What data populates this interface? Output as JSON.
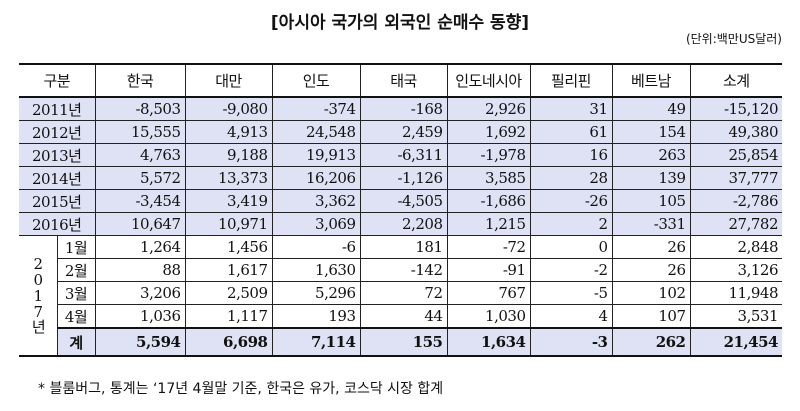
{
  "title": "[아시아 국가의 외국인 순매수 동향]",
  "unit": "(단위:백만US달러)",
  "headers": [
    "구분",
    "한국",
    "대만",
    "인도",
    "태국",
    "인도네시아",
    "필리핀",
    "베트남",
    "소계"
  ],
  "year_rows": [
    {
      "label": "2011년",
      "values": [
        "-8,503",
        "-9,080",
        "-374",
        "-168",
        "2,926",
        "31",
        "49",
        "-15,120"
      ]
    },
    {
      "label": "2012년",
      "values": [
        "15,555",
        "4,913",
        "24,548",
        "2,459",
        "1,692",
        "61",
        "154",
        "49,380"
      ]
    },
    {
      "label": "2013년",
      "values": [
        "4,763",
        "9,188",
        "19,913",
        "-6,311",
        "-1,978",
        "16",
        "263",
        "25,854"
      ]
    },
    {
      "label": "2014년",
      "values": [
        "5,572",
        "13,373",
        "16,206",
        "-1,126",
        "3,585",
        "28",
        "139",
        "37,777"
      ]
    },
    {
      "label": "2015년",
      "values": [
        "-3,454",
        "3,419",
        "3,362",
        "-4,505",
        "-1,686",
        "-26",
        "105",
        "-2,786"
      ]
    },
    {
      "label": "2016년",
      "values": [
        "10,647",
        "10,971",
        "3,069",
        "2,208",
        "1,215",
        "2",
        "-331",
        "27,782"
      ]
    }
  ],
  "year_2017_label": "2017년",
  "month_rows": [
    {
      "label": "1월",
      "values": [
        "1,264",
        "1,456",
        "-6",
        "181",
        "-72",
        "0",
        "26",
        "2,848"
      ]
    },
    {
      "label": "2월",
      "values": [
        "88",
        "1,617",
        "1,630",
        "-142",
        "-91",
        "-2",
        "26",
        "3,126"
      ]
    },
    {
      "label": "3월",
      "values": [
        "3,206",
        "2,509",
        "5,296",
        "72",
        "767",
        "-5",
        "102",
        "11,948"
      ]
    },
    {
      "label": "4월",
      "values": [
        "1,036",
        "1,117",
        "193",
        "44",
        "1,030",
        "4",
        "107",
        "3,531"
      ]
    }
  ],
  "total_row": {
    "label": "계",
    "values": [
      "5,594",
      "6,698",
      "7,114",
      "155",
      "1,634",
      "-3",
      "262",
      "21,454"
    ]
  },
  "footnote": "* 블룸버그, 통계는 ‘17년 4월말 기준, 한국은 유가, 코스닥 시장 합계"
}
